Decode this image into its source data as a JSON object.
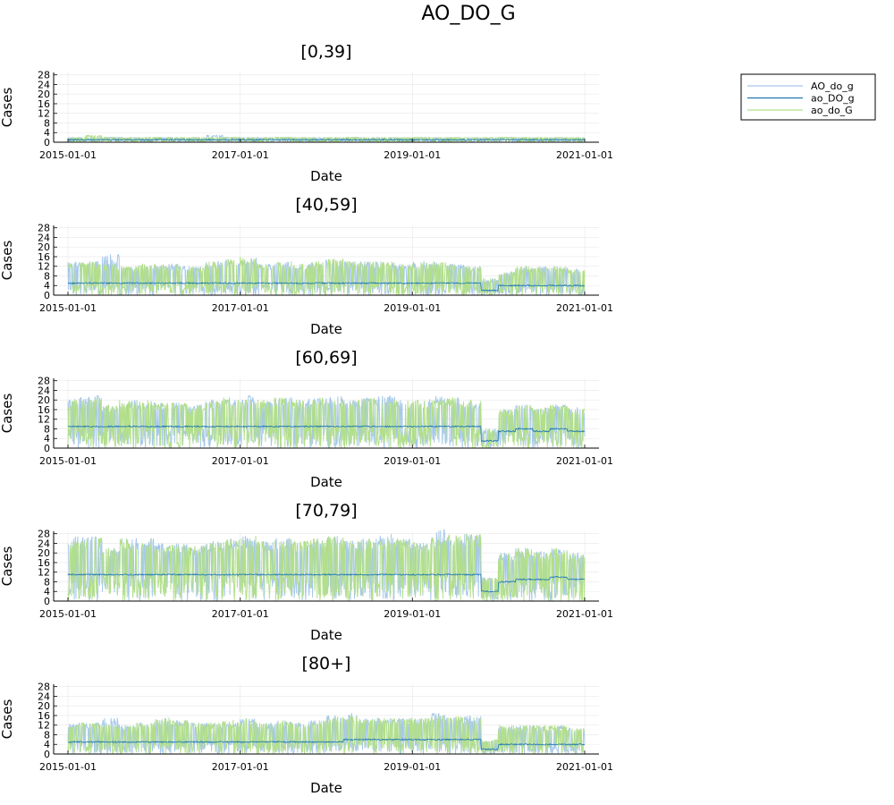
{
  "figure": {
    "title": "AO_DO_G"
  },
  "legend": {
    "placement": "outer-top-right",
    "entries": [
      {
        "name": "AO_do_g",
        "color": "#a6c8ea"
      },
      {
        "name": "ao_DO_g",
        "color": "#1f77b4"
      },
      {
        "name": "ao_do_G",
        "color": "#b2df8a"
      }
    ]
  },
  "chart_data": [
    {
      "type": "line",
      "title": "[0,39]",
      "xlabel": "Date",
      "ylabel": "Cases",
      "xlim": [
        "2015-01-01",
        "2021-01-01"
      ],
      "xticks": [
        "2015-01-01",
        "2017-01-01",
        "2019-01-01",
        "2021-01-01"
      ],
      "ylim": [
        0,
        29
      ],
      "yticks": [
        0,
        4,
        8,
        12,
        16,
        20,
        24,
        28
      ],
      "grid": true,
      "series": [
        {
          "name": "AO_do_g",
          "values": [
            1,
            1,
            2,
            1,
            1,
            2,
            1,
            1,
            1,
            2,
            1,
            1,
            2,
            1,
            1,
            1,
            2,
            1,
            1,
            1,
            2,
            1,
            1,
            1,
            1,
            2,
            1,
            1,
            1,
            1
          ],
          "peaks": [
            2,
            2,
            2,
            2,
            2,
            2,
            2,
            2,
            3,
            2,
            2,
            2,
            2,
            2,
            2,
            2,
            2,
            2,
            2,
            2,
            2,
            2,
            2,
            2,
            2,
            2,
            2,
            2,
            2,
            2
          ]
        },
        {
          "name": "ao_DO_g",
          "values": [
            1,
            1,
            1,
            1,
            1,
            1,
            1,
            1,
            1,
            1,
            1,
            1,
            1,
            1,
            1,
            1,
            1,
            1,
            1,
            1,
            1,
            1,
            1,
            1,
            1,
            1,
            1,
            1,
            1,
            1
          ],
          "peaks": [
            1,
            1,
            1,
            1,
            1,
            1,
            1,
            1,
            1,
            1,
            1,
            1,
            1,
            1,
            1,
            1,
            1,
            1,
            1,
            1,
            1,
            1,
            1,
            1,
            1,
            1,
            1,
            1,
            1,
            1
          ]
        },
        {
          "name": "ao_do_G",
          "values": [
            1,
            1,
            2,
            1,
            1,
            2,
            1,
            1,
            1,
            2,
            1,
            1,
            2,
            1,
            1,
            1,
            2,
            1,
            1,
            1,
            2,
            1,
            1,
            1,
            1,
            2,
            1,
            1,
            1,
            1
          ],
          "peaks": [
            2,
            3,
            2,
            2,
            2,
            2,
            2,
            2,
            2,
            2,
            2,
            2,
            2,
            2,
            2,
            2,
            2,
            2,
            2,
            2,
            2,
            2,
            2,
            2,
            2,
            2,
            2,
            2,
            2,
            2
          ]
        }
      ]
    },
    {
      "type": "line",
      "title": "[40,59]",
      "xlabel": "Date",
      "ylabel": "Cases",
      "xlim": [
        "2015-01-01",
        "2021-01-01"
      ],
      "xticks": [
        "2015-01-01",
        "2017-01-01",
        "2019-01-01",
        "2021-01-01"
      ],
      "ylim": [
        0,
        29
      ],
      "yticks": [
        0,
        4,
        8,
        12,
        16,
        20,
        24,
        28
      ],
      "grid": true,
      "series": [
        {
          "name": "AO_do_g",
          "values": [
            6,
            6,
            5,
            5,
            5,
            6,
            5,
            5,
            5,
            6,
            6,
            6,
            6,
            5,
            6,
            6,
            6,
            6,
            6,
            6,
            5,
            6,
            6,
            5,
            2,
            4,
            5,
            5,
            5,
            5
          ],
          "peaks": [
            14,
            14,
            17,
            12,
            13,
            13,
            13,
            12,
            14,
            15,
            16,
            13,
            14,
            13,
            14,
            15,
            14,
            14,
            14,
            13,
            14,
            14,
            13,
            12,
            7,
            10,
            12,
            12,
            12,
            11
          ]
        },
        {
          "name": "ao_DO_g",
          "values": [
            5,
            5,
            5,
            5,
            5,
            5,
            5,
            5,
            5,
            5,
            5,
            5,
            5,
            5,
            5,
            5,
            5,
            5,
            5,
            5,
            5,
            5,
            5,
            5,
            2,
            4,
            4,
            4,
            4,
            4
          ],
          "peaks": [
            6,
            6,
            6,
            6,
            6,
            6,
            6,
            6,
            6,
            6,
            6,
            6,
            6,
            6,
            6,
            6,
            6,
            6,
            6,
            6,
            6,
            6,
            6,
            6,
            3,
            5,
            5,
            5,
            5,
            5
          ]
        },
        {
          "name": "ao_do_G",
          "values": [
            6,
            6,
            5,
            5,
            5,
            6,
            5,
            5,
            5,
            6,
            6,
            6,
            6,
            5,
            6,
            6,
            6,
            6,
            6,
            6,
            5,
            6,
            6,
            5,
            2,
            4,
            5,
            5,
            5,
            5
          ],
          "peaks": [
            14,
            14,
            13,
            12,
            13,
            13,
            13,
            12,
            14,
            15,
            16,
            13,
            14,
            13,
            14,
            15,
            14,
            14,
            14,
            13,
            14,
            14,
            13,
            12,
            7,
            10,
            12,
            12,
            12,
            11
          ]
        }
      ]
    },
    {
      "type": "line",
      "title": "[60,69]",
      "xlabel": "Date",
      "ylabel": "Cases",
      "xlim": [
        "2015-01-01",
        "2021-01-01"
      ],
      "xticks": [
        "2015-01-01",
        "2017-01-01",
        "2019-01-01",
        "2021-01-01"
      ],
      "ylim": [
        0,
        29
      ],
      "yticks": [
        0,
        4,
        8,
        12,
        16,
        20,
        24,
        28
      ],
      "grid": true,
      "series": [
        {
          "name": "AO_do_g",
          "values": [
            10,
            10,
            9,
            9,
            9,
            10,
            9,
            9,
            9,
            10,
            10,
            10,
            10,
            9,
            10,
            10,
            10,
            10,
            10,
            10,
            9,
            10,
            10,
            10,
            3,
            8,
            9,
            8,
            9,
            8
          ],
          "peaks": [
            21,
            22,
            18,
            20,
            20,
            19,
            19,
            18,
            20,
            21,
            22,
            20,
            21,
            20,
            21,
            22,
            20,
            21,
            22,
            20,
            20,
            22,
            21,
            20,
            8,
            16,
            18,
            17,
            18,
            17
          ]
        },
        {
          "name": "ao_DO_g",
          "values": [
            9,
            9,
            9,
            9,
            9,
            9,
            9,
            9,
            9,
            9,
            9,
            9,
            9,
            9,
            9,
            9,
            9,
            9,
            9,
            9,
            9,
            9,
            9,
            9,
            3,
            7,
            8,
            7,
            8,
            7
          ],
          "peaks": [
            10,
            10,
            10,
            10,
            10,
            10,
            10,
            10,
            10,
            10,
            10,
            10,
            10,
            10,
            10,
            10,
            10,
            10,
            10,
            10,
            10,
            10,
            10,
            10,
            4,
            8,
            9,
            8,
            9,
            8
          ]
        },
        {
          "name": "ao_do_G",
          "values": [
            10,
            10,
            9,
            9,
            9,
            10,
            9,
            9,
            9,
            10,
            10,
            10,
            10,
            9,
            10,
            10,
            10,
            10,
            10,
            10,
            9,
            10,
            10,
            10,
            3,
            8,
            9,
            8,
            9,
            8
          ],
          "peaks": [
            20,
            21,
            18,
            20,
            20,
            19,
            19,
            18,
            20,
            21,
            20,
            20,
            21,
            20,
            21,
            20,
            20,
            21,
            20,
            20,
            20,
            20,
            21,
            20,
            8,
            16,
            18,
            17,
            18,
            17
          ]
        }
      ]
    },
    {
      "type": "line",
      "title": "[70,79]",
      "xlabel": "Date",
      "ylabel": "Cases",
      "xlim": [
        "2015-01-01",
        "2021-01-01"
      ],
      "xticks": [
        "2015-01-01",
        "2017-01-01",
        "2019-01-01",
        "2021-01-01"
      ],
      "ylim": [
        0,
        29
      ],
      "yticks": [
        0,
        4,
        8,
        12,
        16,
        20,
        24,
        28
      ],
      "grid": true,
      "series": [
        {
          "name": "AO_do_g",
          "values": [
            12,
            13,
            12,
            12,
            12,
            13,
            12,
            12,
            12,
            13,
            13,
            13,
            13,
            12,
            13,
            13,
            13,
            13,
            13,
            13,
            12,
            13,
            13,
            13,
            4,
            9,
            10,
            10,
            11,
            10
          ],
          "peaks": [
            27,
            27,
            22,
            26,
            26,
            24,
            24,
            23,
            25,
            26,
            27,
            25,
            26,
            25,
            26,
            27,
            25,
            26,
            28,
            26,
            25,
            30,
            27,
            28,
            10,
            20,
            22,
            21,
            22,
            20
          ]
        },
        {
          "name": "ao_DO_g",
          "values": [
            11,
            11,
            11,
            11,
            11,
            11,
            11,
            11,
            11,
            11,
            11,
            11,
            11,
            11,
            11,
            11,
            11,
            11,
            11,
            11,
            11,
            11,
            11,
            11,
            4,
            8,
            9,
            9,
            10,
            9
          ],
          "peaks": [
            12,
            12,
            12,
            12,
            12,
            12,
            12,
            12,
            12,
            12,
            12,
            12,
            12,
            12,
            12,
            12,
            12,
            12,
            12,
            12,
            12,
            12,
            12,
            12,
            5,
            9,
            10,
            10,
            11,
            10
          ]
        },
        {
          "name": "ao_do_G",
          "values": [
            12,
            13,
            12,
            12,
            12,
            13,
            12,
            12,
            12,
            13,
            13,
            13,
            13,
            12,
            13,
            13,
            13,
            13,
            13,
            13,
            12,
            13,
            13,
            13,
            4,
            9,
            10,
            10,
            11,
            10
          ],
          "peaks": [
            25,
            27,
            22,
            26,
            27,
            24,
            24,
            23,
            25,
            26,
            27,
            25,
            26,
            25,
            26,
            27,
            25,
            26,
            26,
            26,
            25,
            27,
            28,
            28,
            10,
            20,
            22,
            21,
            22,
            20
          ]
        }
      ]
    },
    {
      "type": "line",
      "title": "[80+]",
      "xlabel": "Date",
      "ylabel": "Cases",
      "xlim": [
        "2015-01-01",
        "2021-01-01"
      ],
      "xticks": [
        "2015-01-01",
        "2017-01-01",
        "2019-01-01",
        "2021-01-01"
      ],
      "ylim": [
        0,
        29
      ],
      "yticks": [
        0,
        4,
        8,
        12,
        16,
        20,
        24,
        28
      ],
      "grid": true,
      "series": [
        {
          "name": "AO_do_g",
          "values": [
            6,
            6,
            6,
            6,
            6,
            6,
            6,
            6,
            6,
            6,
            6,
            6,
            6,
            6,
            6,
            6,
            7,
            7,
            7,
            7,
            7,
            7,
            7,
            7,
            2,
            5,
            5,
            5,
            5,
            5
          ],
          "peaks": [
            13,
            13,
            15,
            12,
            13,
            15,
            14,
            13,
            13,
            14,
            15,
            13,
            14,
            13,
            14,
            16,
            17,
            15,
            15,
            15,
            15,
            17,
            16,
            16,
            6,
            12,
            12,
            12,
            12,
            11
          ]
        },
        {
          "name": "ao_DO_g",
          "values": [
            5,
            5,
            5,
            5,
            5,
            5,
            5,
            5,
            5,
            5,
            5,
            5,
            5,
            5,
            5,
            5,
            6,
            6,
            6,
            6,
            6,
            6,
            6,
            6,
            2,
            4,
            4,
            4,
            4,
            4
          ],
          "peaks": [
            6,
            6,
            6,
            6,
            6,
            6,
            6,
            6,
            6,
            6,
            6,
            6,
            6,
            6,
            6,
            6,
            7,
            7,
            7,
            7,
            7,
            7,
            7,
            7,
            3,
            5,
            5,
            5,
            5,
            5
          ]
        },
        {
          "name": "ao_do_G",
          "values": [
            6,
            6,
            6,
            6,
            6,
            6,
            6,
            6,
            6,
            6,
            6,
            6,
            6,
            6,
            6,
            6,
            7,
            7,
            7,
            7,
            7,
            7,
            7,
            7,
            2,
            5,
            5,
            5,
            5,
            5
          ],
          "peaks": [
            13,
            13,
            12,
            12,
            13,
            15,
            14,
            13,
            13,
            14,
            15,
            13,
            14,
            13,
            14,
            16,
            16,
            15,
            15,
            15,
            15,
            16,
            16,
            16,
            6,
            12,
            12,
            12,
            12,
            11
          ]
        }
      ]
    }
  ]
}
